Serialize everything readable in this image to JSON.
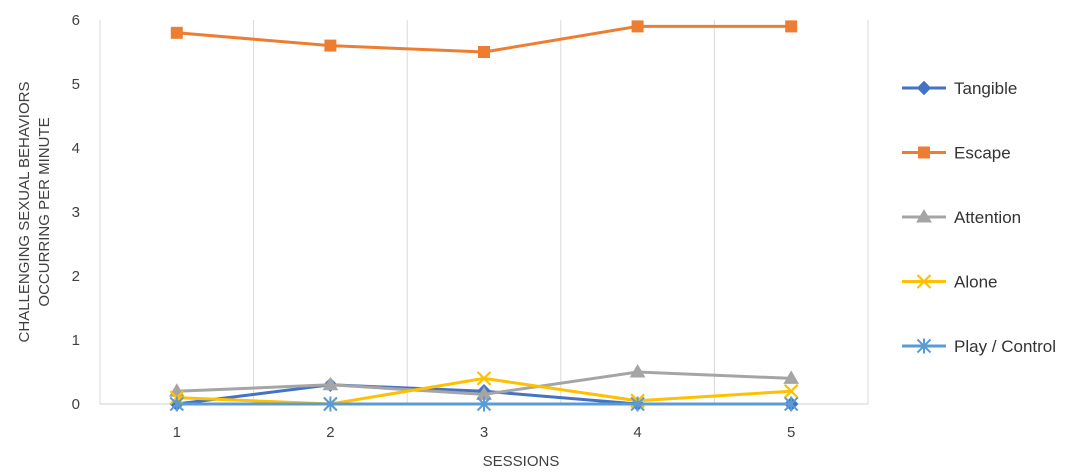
{
  "chart_data": {
    "type": "line",
    "categories": [
      "1",
      "2",
      "3",
      "4",
      "5"
    ],
    "xlabel": "SESSIONS",
    "ylabel": [
      "CHALLENGING SEXUAL BEHAVIORS",
      "OCCURRING PER MINUTE"
    ],
    "ylim": [
      0,
      6
    ],
    "yticks": [
      "0",
      "1",
      "2",
      "3",
      "4",
      "5",
      "6"
    ],
    "grid": "vertical",
    "legend_position": "right",
    "series": [
      {
        "name": "Tangible",
        "values": [
          0.0,
          0.3,
          0.2,
          0.0,
          0.0
        ],
        "color": "#4472c4",
        "marker": "diamond"
      },
      {
        "name": "Escape",
        "values": [
          5.8,
          5.6,
          5.5,
          5.9,
          5.9
        ],
        "color": "#ed7d31",
        "marker": "square"
      },
      {
        "name": "Attention",
        "values": [
          0.2,
          0.3,
          0.15,
          0.5,
          0.4
        ],
        "color": "#a5a5a5",
        "marker": "triangle"
      },
      {
        "name": "Alone",
        "values": [
          0.1,
          0.0,
          0.4,
          0.05,
          0.2
        ],
        "color": "#ffc000",
        "marker": "x"
      },
      {
        "name": "Play / Control",
        "values": [
          0.0,
          0.0,
          0.0,
          0.0,
          0.0
        ],
        "color": "#5b9bd5",
        "marker": "star"
      }
    ]
  }
}
